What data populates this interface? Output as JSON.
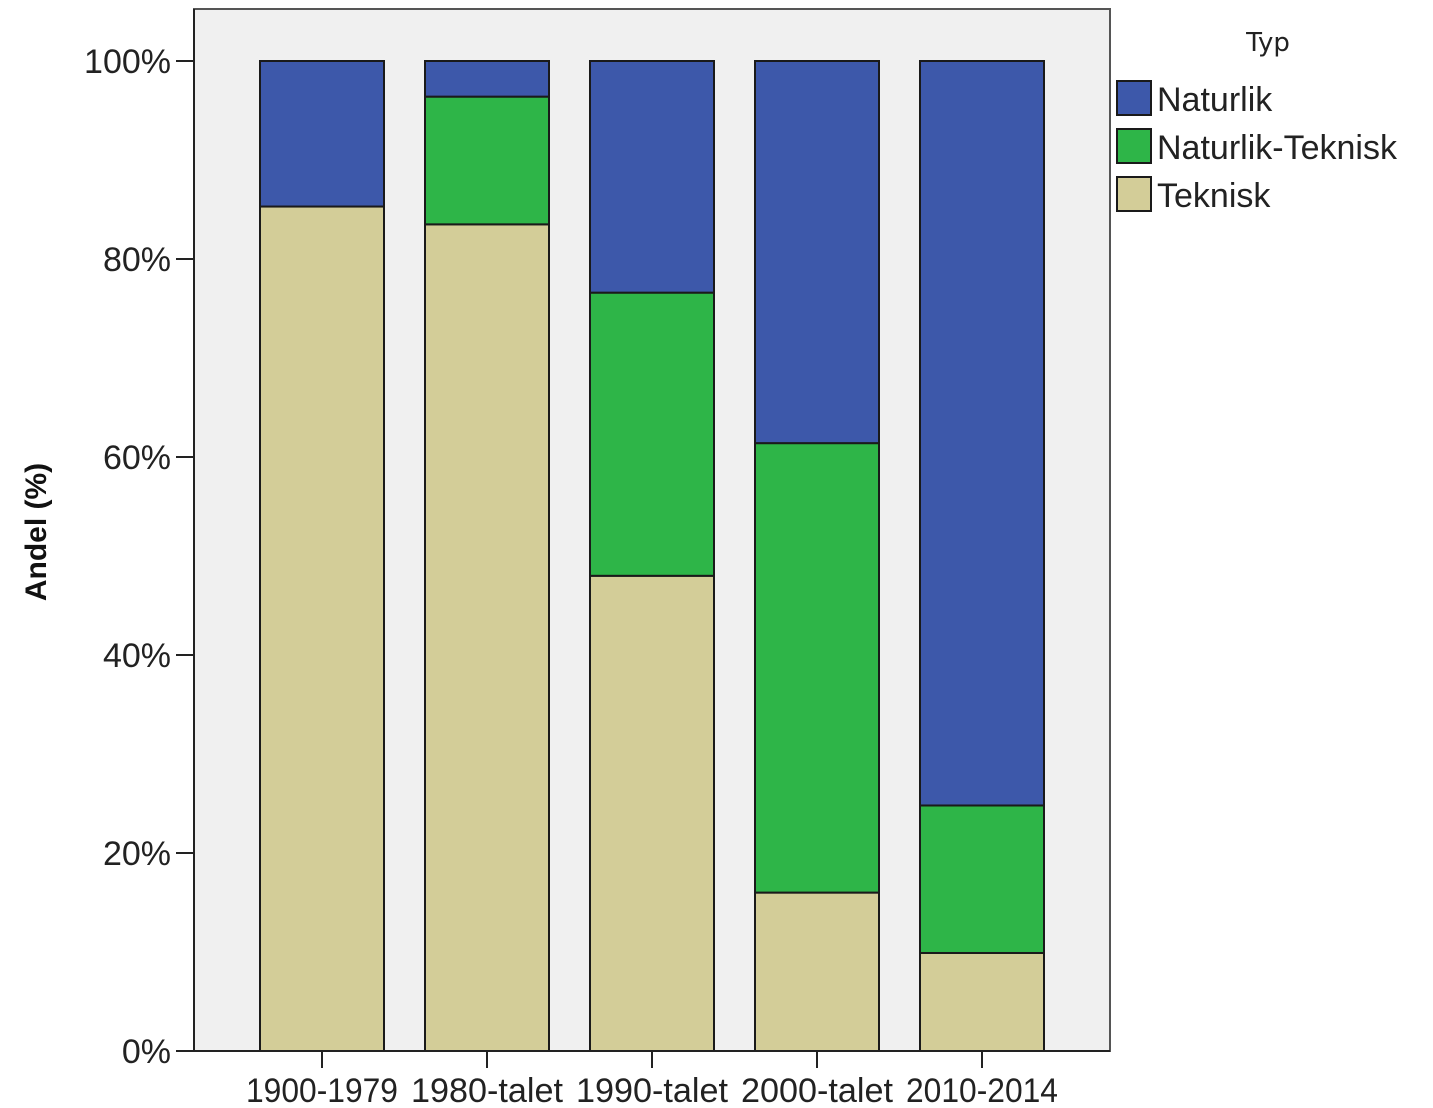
{
  "chart_data": {
    "type": "bar",
    "stacked": true,
    "categories": [
      "1900-1979",
      "1980-talet",
      "1990-talet",
      "2000-talet",
      "2010-2014"
    ],
    "series": [
      {
        "name": "Teknisk",
        "color": "#d3cd98",
        "values": [
          85.3,
          83.5,
          48.0,
          16.0,
          9.9
        ]
      },
      {
        "name": "Naturlik-Teknisk",
        "color": "#2eb548",
        "values": [
          0.0,
          12.9,
          28.6,
          45.4,
          14.9
        ]
      },
      {
        "name": "Naturlik",
        "color": "#3d58aa",
        "values": [
          14.7,
          3.6,
          23.4,
          38.6,
          75.2
        ]
      }
    ],
    "ylabel": "Andel (%)",
    "xlabel": "",
    "ylim": [
      0,
      100
    ],
    "yticks": [
      "0%",
      "20%",
      "40%",
      "60%",
      "80%",
      "100%"
    ],
    "ytick_values": [
      0,
      20,
      40,
      60,
      80,
      100
    ],
    "legend": {
      "title": "Typ",
      "position": "right",
      "entries": [
        "Naturlik",
        "Naturlik-Teknisk",
        "Teknisk"
      ]
    },
    "plot_background": "#f0f0f0",
    "grid": false
  }
}
